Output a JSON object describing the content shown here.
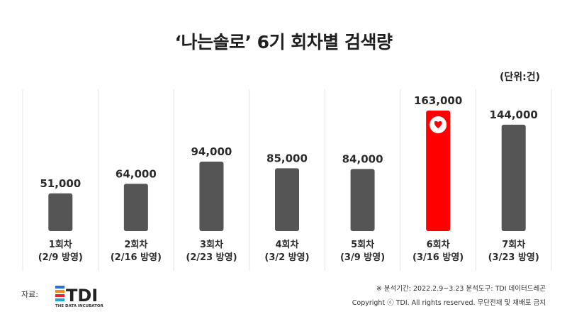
{
  "title": "‘나는솔로’ 6기 회차별 검색량",
  "unit_label": "(단위:건)",
  "source_label": "자료:",
  "logo": {
    "text": "TDI",
    "subtext": "THE DATA INCUBATOR"
  },
  "footnote_period": "※ 분석기간: 2022.2.9~3.23 분석도구: TDI 데이터드레곤",
  "footnote_copyright": "Copyright ⓒ TDI. All rights reserved. 무단전재 및 재배포 금지",
  "colors": {
    "bar": "#555555",
    "highlight": "#ff0000",
    "panel": "#ffffff",
    "divider": "#e4e4e4"
  },
  "chart_data": {
    "type": "bar",
    "categories": [
      "1회차",
      "2회차",
      "3회차",
      "4회차",
      "5회차",
      "6회차",
      "7회차"
    ],
    "sublabels": [
      "(2/9 방영)",
      "(2/16 방영)",
      "(2/23 방영)",
      "(3/2 방영)",
      "(3/9 방영)",
      "(3/16 방영)",
      "(3/23 방영)"
    ],
    "values": [
      51000,
      64000,
      94000,
      85000,
      84000,
      163000,
      144000
    ],
    "value_labels": [
      "51,000",
      "64,000",
      "94,000",
      "85,000",
      "84,000",
      "163,000",
      "144,000"
    ],
    "highlight_index": 5,
    "highlight_icon": "heart-icon",
    "ylim": [
      0,
      163000
    ]
  }
}
